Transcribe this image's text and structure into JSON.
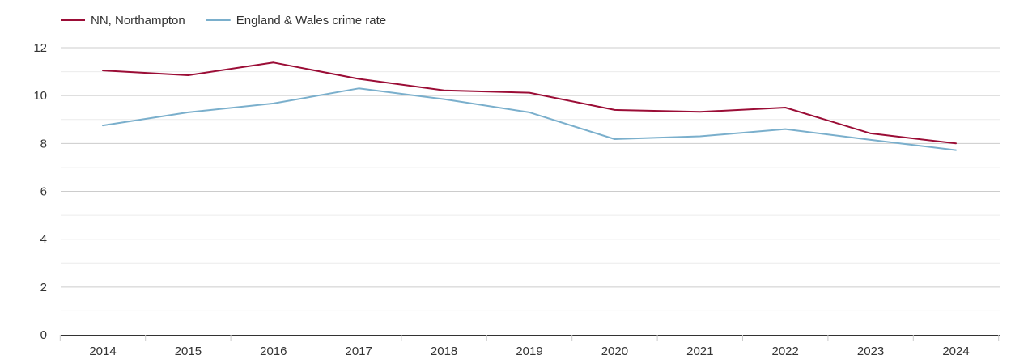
{
  "chart_data": {
    "type": "line",
    "x": [
      "2014",
      "2015",
      "2016",
      "2017",
      "2018",
      "2019",
      "2020",
      "2021",
      "2022",
      "2023",
      "2024"
    ],
    "series": [
      {
        "name": "NN, Northampton",
        "color": "#9b0d36",
        "values": [
          11.05,
          10.85,
          11.38,
          10.7,
          10.22,
          10.12,
          9.4,
          9.32,
          9.5,
          8.42,
          8.0
        ]
      },
      {
        "name": "England & Wales crime rate",
        "color": "#7aafcc",
        "values": [
          8.75,
          9.3,
          9.67,
          10.3,
          9.85,
          9.3,
          8.18,
          8.3,
          8.6,
          8.15,
          7.72
        ]
      }
    ],
    "title": "",
    "xlabel": "",
    "ylabel": "",
    "ylim": [
      0,
      12
    ],
    "yticks": [
      "0",
      "2",
      "4",
      "6",
      "8",
      "10",
      "12"
    ],
    "grid": true,
    "legend_position": "top-left"
  }
}
